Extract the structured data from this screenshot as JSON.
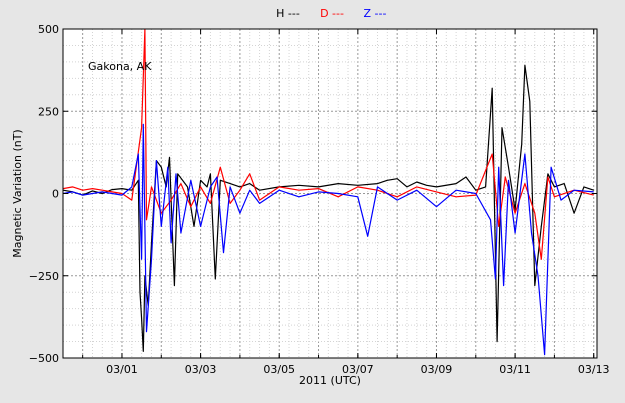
{
  "chart_data": {
    "type": "line",
    "location": "Gakona, AK",
    "xlabel": "2011 (UTC)",
    "ylabel": "Magnetic Variation (nT)",
    "xlim": [
      "2011-02-27T12:00",
      "2011-03-13T02:00"
    ],
    "ylim": [
      -500,
      500
    ],
    "grid": true,
    "legend": "top-center",
    "x_ticks": [
      "03/01",
      "03/03",
      "03/05",
      "03/07",
      "03/09",
      "03/11",
      "03/13"
    ],
    "y_ticks": [
      "500",
      "250",
      "0",
      "−250",
      "−500"
    ],
    "series": [
      {
        "name": "H ---",
        "color": "#000000",
        "points": [
          [
            "2011-02-27T12:00",
            10
          ],
          [
            "2011-02-27T18:00",
            5
          ],
          [
            "2011-02-28T00:00",
            -5
          ],
          [
            "2011-02-28T06:00",
            8
          ],
          [
            "2011-02-28T12:00",
            0
          ],
          [
            "2011-02-28T18:00",
            12
          ],
          [
            "2011-03-01T00:00",
            15
          ],
          [
            "2011-03-01T06:00",
            10
          ],
          [
            "2011-03-01T10:00",
            40
          ],
          [
            "2011-03-01T11:00",
            -300
          ],
          [
            "2011-03-01T12:00",
            -380
          ],
          [
            "2011-03-01T13:00",
            -480
          ],
          [
            "2011-03-01T14:00",
            -250
          ],
          [
            "2011-03-01T16:00",
            -340
          ],
          [
            "2011-03-01T18:00",
            -150
          ],
          [
            "2011-03-01T21:00",
            100
          ],
          [
            "2011-03-02T00:00",
            80
          ],
          [
            "2011-03-02T03:00",
            20
          ],
          [
            "2011-03-02T05:00",
            110
          ],
          [
            "2011-03-02T08:00",
            -280
          ],
          [
            "2011-03-02T10:00",
            60
          ],
          [
            "2011-03-02T16:00",
            20
          ],
          [
            "2011-03-02T20:00",
            -100
          ],
          [
            "2011-03-03T00:00",
            40
          ],
          [
            "2011-03-03T04:00",
            20
          ],
          [
            "2011-03-03T06:00",
            60
          ],
          [
            "2011-03-03T09:00",
            -260
          ],
          [
            "2011-03-03T12:00",
            40
          ],
          [
            "2011-03-03T18:00",
            30
          ],
          [
            "2011-03-04T00:00",
            20
          ],
          [
            "2011-03-04T06:00",
            30
          ],
          [
            "2011-03-04T12:00",
            10
          ],
          [
            "2011-03-05T00:00",
            20
          ],
          [
            "2011-03-05T12:00",
            25
          ],
          [
            "2011-03-06T00:00",
            20
          ],
          [
            "2011-03-06T12:00",
            30
          ],
          [
            "2011-03-07T00:00",
            25
          ],
          [
            "2011-03-07T12:00",
            30
          ],
          [
            "2011-03-07T18:00",
            40
          ],
          [
            "2011-03-08T00:00",
            45
          ],
          [
            "2011-03-08T06:00",
            20
          ],
          [
            "2011-03-08T12:00",
            35
          ],
          [
            "2011-03-08T18:00",
            25
          ],
          [
            "2011-03-09T00:00",
            20
          ],
          [
            "2011-03-09T12:00",
            30
          ],
          [
            "2011-03-09T18:00",
            50
          ],
          [
            "2011-03-10T00:00",
            10
          ],
          [
            "2011-03-10T06:00",
            20
          ],
          [
            "2011-03-10T10:00",
            320
          ],
          [
            "2011-03-10T13:00",
            -450
          ],
          [
            "2011-03-10T16:00",
            200
          ],
          [
            "2011-03-10T20:00",
            80
          ],
          [
            "2011-03-11T00:00",
            -50
          ],
          [
            "2011-03-11T04:00",
            150
          ],
          [
            "2011-03-11T06:00",
            390
          ],
          [
            "2011-03-11T09:00",
            280
          ],
          [
            "2011-03-11T12:00",
            -280
          ],
          [
            "2011-03-11T16:00",
            -100
          ],
          [
            "2011-03-11T20:00",
            60
          ],
          [
            "2011-03-12T00:00",
            20
          ],
          [
            "2011-03-12T06:00",
            30
          ],
          [
            "2011-03-12T12:00",
            -60
          ],
          [
            "2011-03-12T18:00",
            20
          ],
          [
            "2011-03-13T00:00",
            10
          ]
        ]
      },
      {
        "name": "D ---",
        "color": "#ff0000",
        "points": [
          [
            "2011-02-27T12:00",
            15
          ],
          [
            "2011-02-27T18:00",
            20
          ],
          [
            "2011-02-28T00:00",
            10
          ],
          [
            "2011-02-28T06:00",
            15
          ],
          [
            "2011-02-28T12:00",
            10
          ],
          [
            "2011-02-28T18:00",
            5
          ],
          [
            "2011-03-01T00:00",
            0
          ],
          [
            "2011-03-01T06:00",
            -20
          ],
          [
            "2011-03-01T12:00",
            200
          ],
          [
            "2011-03-01T14:00",
            500
          ],
          [
            "2011-03-01T15:00",
            -80
          ],
          [
            "2011-03-01T18:00",
            20
          ],
          [
            "2011-03-02T00:00",
            -60
          ],
          [
            "2011-03-02T06:00",
            -20
          ],
          [
            "2011-03-02T12:00",
            30
          ],
          [
            "2011-03-02T18:00",
            -40
          ],
          [
            "2011-03-03T00:00",
            20
          ],
          [
            "2011-03-03T06:00",
            -30
          ],
          [
            "2011-03-03T12:00",
            80
          ],
          [
            "2011-03-03T18:00",
            -30
          ],
          [
            "2011-03-04T00:00",
            10
          ],
          [
            "2011-03-04T06:00",
            60
          ],
          [
            "2011-03-04T12:00",
            -20
          ],
          [
            "2011-03-05T00:00",
            20
          ],
          [
            "2011-03-05T12:00",
            10
          ],
          [
            "2011-03-06T00:00",
            15
          ],
          [
            "2011-03-06T12:00",
            -10
          ],
          [
            "2011-03-07T00:00",
            20
          ],
          [
            "2011-03-07T12:00",
            10
          ],
          [
            "2011-03-08T00:00",
            -10
          ],
          [
            "2011-03-08T12:00",
            20
          ],
          [
            "2011-03-09T00:00",
            5
          ],
          [
            "2011-03-09T12:00",
            -10
          ],
          [
            "2011-03-10T00:00",
            -5
          ],
          [
            "2011-03-10T10:00",
            120
          ],
          [
            "2011-03-10T14:00",
            -100
          ],
          [
            "2011-03-10T18:00",
            50
          ],
          [
            "2011-03-11T00:00",
            -60
          ],
          [
            "2011-03-11T06:00",
            30
          ],
          [
            "2011-03-11T12:00",
            -60
          ],
          [
            "2011-03-11T16:00",
            -200
          ],
          [
            "2011-03-11T20:00",
            50
          ],
          [
            "2011-03-12T00:00",
            -10
          ],
          [
            "2011-03-12T12:00",
            10
          ],
          [
            "2011-03-13T00:00",
            -5
          ]
        ]
      },
      {
        "name": "Z ---",
        "color": "#0000ff",
        "points": [
          [
            "2011-02-27T12:00",
            0
          ],
          [
            "2011-02-27T18:00",
            5
          ],
          [
            "2011-02-28T00:00",
            -5
          ],
          [
            "2011-02-28T06:00",
            0
          ],
          [
            "2011-02-28T12:00",
            5
          ],
          [
            "2011-02-28T18:00",
            0
          ],
          [
            "2011-03-01T00:00",
            -5
          ],
          [
            "2011-03-01T06:00",
            20
          ],
          [
            "2011-03-01T10:00",
            120
          ],
          [
            "2011-03-01T12:00",
            -200
          ],
          [
            "2011-03-01T13:00",
            210
          ],
          [
            "2011-03-01T15:00",
            -420
          ],
          [
            "2011-03-01T18:00",
            -200
          ],
          [
            "2011-03-01T21:00",
            100
          ],
          [
            "2011-03-02T00:00",
            -100
          ],
          [
            "2011-03-02T04:00",
            80
          ],
          [
            "2011-03-02T06:00",
            -150
          ],
          [
            "2011-03-02T09:00",
            60
          ],
          [
            "2011-03-02T12:00",
            -120
          ],
          [
            "2011-03-02T18:00",
            40
          ],
          [
            "2011-03-03T00:00",
            -100
          ],
          [
            "2011-03-03T06:00",
            20
          ],
          [
            "2011-03-03T10:00",
            50
          ],
          [
            "2011-03-03T14:00",
            -180
          ],
          [
            "2011-03-03T18:00",
            20
          ],
          [
            "2011-03-04T00:00",
            -60
          ],
          [
            "2011-03-04T06:00",
            10
          ],
          [
            "2011-03-04T12:00",
            -30
          ],
          [
            "2011-03-05T00:00",
            10
          ],
          [
            "2011-03-05T12:00",
            -10
          ],
          [
            "2011-03-06T00:00",
            5
          ],
          [
            "2011-03-06T12:00",
            0
          ],
          [
            "2011-03-07T00:00",
            -10
          ],
          [
            "2011-03-07T06:00",
            -130
          ],
          [
            "2011-03-07T12:00",
            20
          ],
          [
            "2011-03-08T00:00",
            -20
          ],
          [
            "2011-03-08T12:00",
            10
          ],
          [
            "2011-03-09T00:00",
            -40
          ],
          [
            "2011-03-09T12:00",
            10
          ],
          [
            "2011-03-10T00:00",
            0
          ],
          [
            "2011-03-10T09:00",
            -80
          ],
          [
            "2011-03-10T12:00",
            -260
          ],
          [
            "2011-03-10T14:00",
            80
          ],
          [
            "2011-03-10T17:00",
            -280
          ],
          [
            "2011-03-10T20:00",
            40
          ],
          [
            "2011-03-11T00:00",
            -120
          ],
          [
            "2011-03-11T06:00",
            120
          ],
          [
            "2011-03-11T10:00",
            -120
          ],
          [
            "2011-03-11T14:00",
            -250
          ],
          [
            "2011-03-11T18:00",
            -490
          ],
          [
            "2011-03-11T22:00",
            80
          ],
          [
            "2011-03-12T04:00",
            -20
          ],
          [
            "2011-03-12T12:00",
            10
          ],
          [
            "2011-03-13T00:00",
            5
          ]
        ]
      }
    ]
  }
}
